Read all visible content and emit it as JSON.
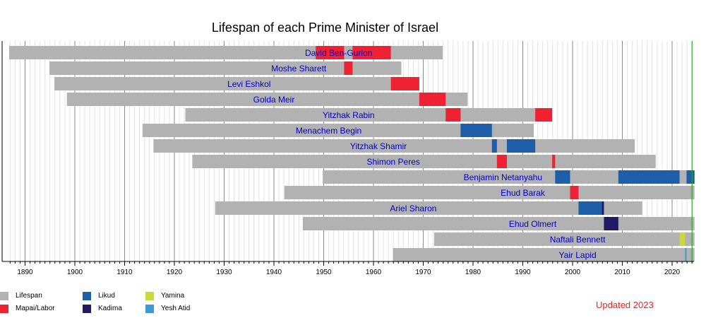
{
  "chart_data": {
    "type": "bar",
    "title": "Lifespan of each Prime Minister of Israel",
    "xlim": [
      1886,
      2024.5
    ],
    "x_ticks": [
      1890,
      1900,
      1910,
      1920,
      1930,
      1940,
      1950,
      1960,
      1970,
      1980,
      1990,
      2000,
      2010,
      2020
    ],
    "grid": "vertical",
    "current_year_line": 2024,
    "colors": {
      "Lifespan": "#b2b2b2",
      "Mapai/Labor": "#ee2233",
      "Likud": "#1f5ea8",
      "Kadima": "#221a66",
      "Yamina": "#c9d936",
      "Yesh Atid": "#3d9bd1"
    },
    "legend": [
      {
        "label": "Lifespan",
        "key": "Lifespan"
      },
      {
        "label": "Mapai/Labor",
        "key": "Mapai/Labor"
      },
      {
        "label": "Likud",
        "key": "Likud"
      },
      {
        "label": "Kadima",
        "key": "Kadima"
      },
      {
        "label": "Yamina",
        "key": "Yamina"
      },
      {
        "label": "Yesh Atid",
        "key": "Yesh Atid"
      }
    ],
    "series": [
      {
        "name": "David Ben-Gurion",
        "born": 1886.8,
        "died": 1973.9,
        "label_x": 1953,
        "terms": [
          {
            "start": 1948.4,
            "end": 1954.1,
            "party": "Mapai/Labor"
          },
          {
            "start": 1955.8,
            "end": 1963.5,
            "party": "Mapai/Labor"
          }
        ]
      },
      {
        "name": "Moshe Sharett",
        "born": 1894.9,
        "died": 1965.6,
        "label_x": 1945,
        "terms": [
          {
            "start": 1954.1,
            "end": 1955.8,
            "party": "Mapai/Labor"
          }
        ]
      },
      {
        "name": "Levi Eshkol",
        "born": 1895.9,
        "died": 1969.2,
        "label_x": 1935,
        "terms": [
          {
            "start": 1963.5,
            "end": 1969.2,
            "party": "Mapai/Labor"
          }
        ]
      },
      {
        "name": "Golda Meir",
        "born": 1898.4,
        "died": 1978.9,
        "label_x": 1940,
        "terms": [
          {
            "start": 1969.2,
            "end": 1974.5,
            "party": "Mapai/Labor"
          }
        ]
      },
      {
        "name": "Yitzhak Rabin",
        "born": 1922.2,
        "died": 1995.9,
        "label_x": 1955,
        "terms": [
          {
            "start": 1974.5,
            "end": 1977.5,
            "party": "Mapai/Labor"
          },
          {
            "start": 1992.5,
            "end": 1995.9,
            "party": "Mapai/Labor"
          }
        ]
      },
      {
        "name": "Menachem Begin",
        "born": 1913.6,
        "died": 1992.2,
        "label_x": 1951,
        "terms": [
          {
            "start": 1977.5,
            "end": 1983.8,
            "party": "Likud"
          }
        ]
      },
      {
        "name": "Yitzhak Shamir",
        "born": 1915.8,
        "died": 2012.5,
        "label_x": 1961,
        "terms": [
          {
            "start": 1983.8,
            "end": 1984.8,
            "party": "Likud"
          },
          {
            "start": 1986.8,
            "end": 1992.5,
            "party": "Likud"
          }
        ]
      },
      {
        "name": "Shimon Peres",
        "born": 1923.6,
        "died": 2016.7,
        "label_x": 1964,
        "terms": [
          {
            "start": 1984.8,
            "end": 1986.8,
            "party": "Mapai/Labor"
          },
          {
            "start": 1995.9,
            "end": 1996.5,
            "party": "Mapai/Labor"
          }
        ]
      },
      {
        "name": "Benjamin Netanyahu",
        "born": 1949.8,
        "died": 2024.5,
        "label_x": 1986,
        "terms": [
          {
            "start": 1996.5,
            "end": 1999.5,
            "party": "Likud"
          },
          {
            "start": 2009.2,
            "end": 2021.5,
            "party": "Likud"
          },
          {
            "start": 2022.9,
            "end": 2024.5,
            "party": "Likud"
          }
        ]
      },
      {
        "name": "Ehud Barak",
        "born": 1942.1,
        "died": 2024.5,
        "label_x": 1990,
        "terms": [
          {
            "start": 1999.5,
            "end": 2001.2,
            "party": "Mapai/Labor"
          }
        ]
      },
      {
        "name": "Ariel Sharon",
        "born": 1928.2,
        "died": 2014.0,
        "label_x": 1968,
        "terms": [
          {
            "start": 2001.2,
            "end": 2005.9,
            "party": "Likud"
          },
          {
            "start": 2005.9,
            "end": 2006.3,
            "party": "Kadima"
          }
        ]
      },
      {
        "name": "Ehud Olmert",
        "born": 1945.8,
        "died": 2024.5,
        "label_x": 1992,
        "terms": [
          {
            "start": 2006.3,
            "end": 2009.2,
            "party": "Kadima"
          }
        ]
      },
      {
        "name": "Naftali Bennett",
        "born": 1972.2,
        "died": 2024.5,
        "label_x": 2001,
        "terms": [
          {
            "start": 2021.5,
            "end": 2022.6,
            "party": "Yamina"
          }
        ]
      },
      {
        "name": "Yair Lapid",
        "born": 1963.9,
        "died": 2024.5,
        "label_x": 2001,
        "terms": [
          {
            "start": 2022.6,
            "end": 2022.9,
            "party": "Yesh Atid"
          }
        ]
      }
    ]
  },
  "footer": {
    "updated": "Updated 2023"
  }
}
